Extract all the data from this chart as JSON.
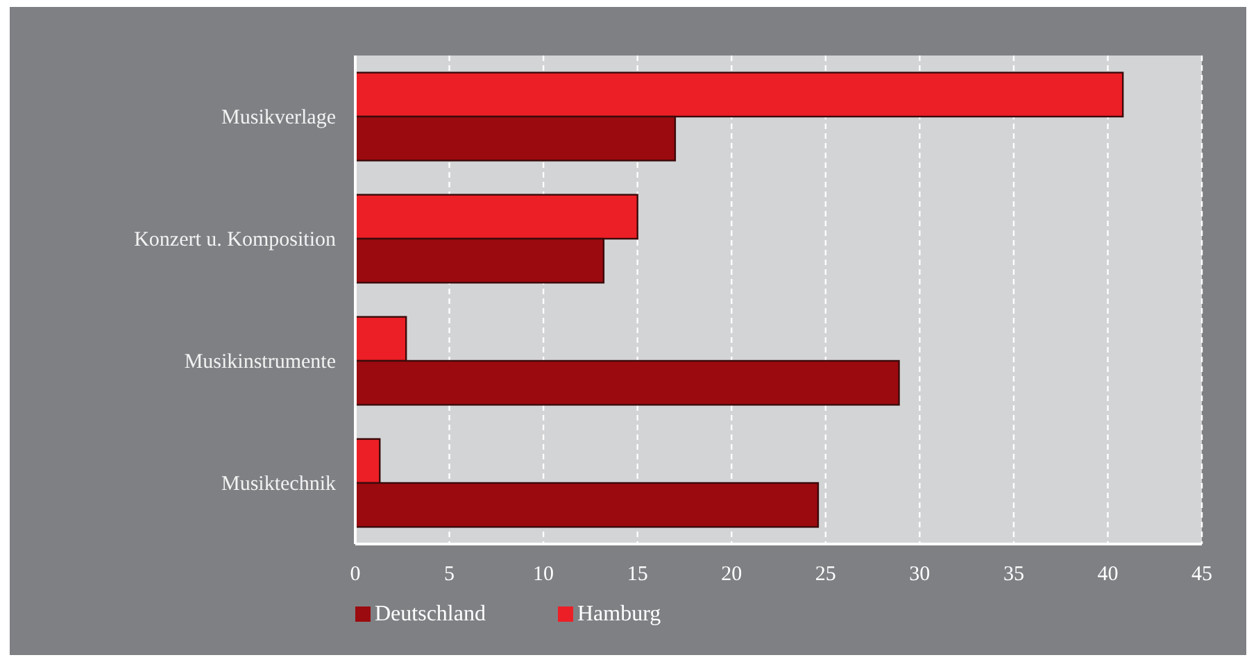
{
  "chart_data": {
    "type": "bar",
    "orientation": "horizontal",
    "categories": [
      "Musikverlage",
      "Konzert u. Komposition",
      "Musikinstrumente",
      "Musiktechnik"
    ],
    "series": [
      {
        "name": "Hamburg",
        "color": "#ec1f26",
        "values": [
          40.8,
          15.0,
          2.7,
          1.3
        ]
      },
      {
        "name": "Deutschland",
        "color": "#9b0a0f",
        "values": [
          17.0,
          13.2,
          28.9,
          24.6
        ]
      }
    ],
    "xlim": [
      0,
      45
    ],
    "xticks": [
      0,
      5,
      10,
      15,
      20,
      25,
      30,
      35,
      40,
      45
    ],
    "grid": "x",
    "legend": "bottom"
  }
}
